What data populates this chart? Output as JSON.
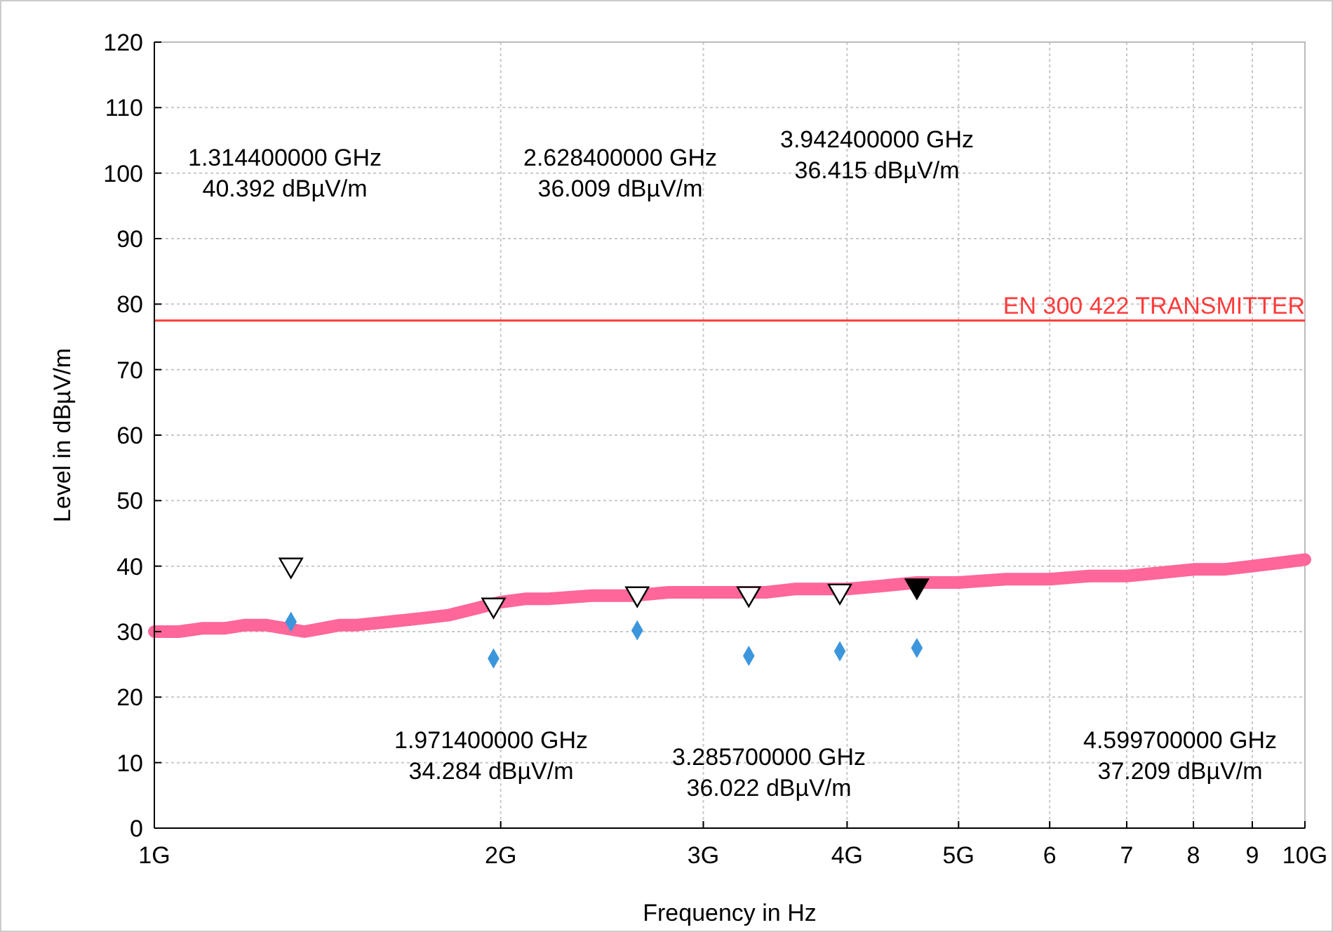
{
  "chart_data": {
    "type": "line",
    "xlabel": "Frequency in Hz",
    "ylabel": "Level in dBµV/m",
    "log": "x",
    "grid": true,
    "xlim": [
      1,
      10
    ],
    "xticks": [
      {
        "value": 1,
        "label": "1G"
      },
      {
        "value": 2,
        "label": "2G"
      },
      {
        "value": 3,
        "label": "3G"
      },
      {
        "value": 4,
        "label": "4G"
      },
      {
        "value": 5,
        "label": "5G"
      },
      6,
      7,
      8,
      9,
      {
        "value": 10,
        "label": "10G"
      }
    ],
    "ylim": [
      0,
      120
    ],
    "yticks": [
      0,
      10,
      20,
      30,
      40,
      50,
      60,
      70,
      80,
      90,
      100,
      110,
      120
    ],
    "series": [
      {
        "color": "#ff6699",
        "marker": "none",
        "x": [
          1.0,
          1.05,
          1.1,
          1.15,
          1.2,
          1.25,
          1.3,
          1.35,
          1.4,
          1.45,
          1.5,
          1.6,
          1.7,
          1.8,
          1.9,
          2.0,
          2.1,
          2.2,
          2.4,
          2.6,
          2.8,
          3.0,
          3.2,
          3.4,
          3.6,
          3.8,
          4.0,
          4.3,
          4.6,
          5.0,
          5.5,
          6.0,
          6.5,
          7.0,
          7.5,
          8.0,
          8.5,
          9.0,
          9.5,
          10
        ],
        "values": [
          30,
          30,
          30.5,
          30.5,
          31,
          31,
          30.5,
          30,
          30.5,
          31,
          31,
          31.5,
          32,
          32.5,
          33.5,
          34.5,
          35,
          35,
          35.5,
          35.5,
          36,
          36,
          36,
          36,
          36.5,
          36.5,
          36.5,
          37,
          37.5,
          37.5,
          38,
          38,
          38.5,
          38.5,
          39,
          39.5,
          39.5,
          40,
          40.5,
          41
        ]
      },
      {
        "type": "scatter",
        "color": "#3c96dc",
        "marker": "diamond",
        "x": [
          1.3144,
          1.9714,
          2.6284,
          3.2857,
          3.9424,
          4.5997
        ],
        "values": [
          31.5,
          25.9,
          30.2,
          26.3,
          27.0,
          27.5
        ]
      },
      {
        "type": "scatter",
        "color": "#000000",
        "marker": "triangle",
        "colors": [
          "#ffffff",
          "#ffffff",
          "#ffffff",
          "#ffffff",
          "#ffffff",
          "#000000"
        ],
        "x": [
          1.3144,
          1.9714,
          2.6284,
          3.2857,
          3.9424,
          4.5997
        ],
        "values": [
          40.392,
          34.284,
          36.009,
          36.022,
          36.415,
          37.209
        ]
      }
    ],
    "ref_lines": [
      {
        "axis": "y",
        "value": 77.5,
        "label": "EN 300 422 TRANSMITTER",
        "color": "#ff3b3b"
      }
    ],
    "annotations": [
      "1.314400000 GHz\n40.392 dBµV/m",
      "2.628400000 GHz\n36.009 dBµV/m",
      "3.942400000 GHz\n36.415 dBµV/m",
      "1.971400000 GHz\n34.284 dBµV/m",
      "3.285700000 GHz\n36.022 dBµV/m",
      "4.599700000 GHz\n37.209 dBµV/m"
    ]
  }
}
